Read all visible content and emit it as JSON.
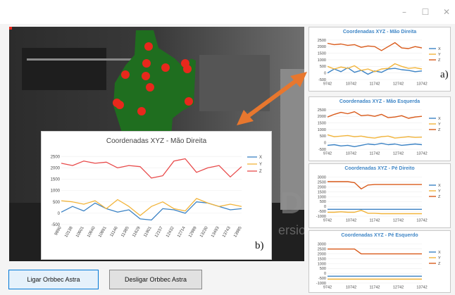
{
  "window": {
    "minimize_glyph": "–",
    "maximize_glyph": "☐",
    "close_glyph": "✕"
  },
  "buttons": {
    "connect_label": "Ligar Orbbec Astra",
    "disconnect_label": "Desligar Orbbec Astra"
  },
  "depth_view": {
    "overlay_text_partial_1": "DV",
    "overlay_text_partial_2": "ersio"
  },
  "colors": {
    "x": "#3b82c4",
    "y": "#f2b43a",
    "z_inset": "#e84b4b",
    "z_panel": "#d95a1a",
    "title": "#3f86c6",
    "arrow": "#e8772e",
    "joint": "#e8281c",
    "body": "#1f6e1f"
  },
  "annotations": {
    "a": "a)",
    "b": "b)"
  },
  "chart_data": [
    {
      "type": "line",
      "title": "Coordenadas XYZ - Mão Direita",
      "legend_position": "right",
      "y_ticks": [
        2500,
        2000,
        1500,
        1000,
        500,
        0,
        -500
      ],
      "ylim": [
        -500,
        2600
      ],
      "x_ticks": [
        "9742",
        "10742",
        "11742",
        "12742",
        "13742"
      ],
      "series": [
        {
          "name": "X",
          "values": [
            0,
            300,
            100,
            400,
            50,
            200,
            -100,
            150,
            50,
            300,
            350,
            250,
            200,
            100,
            150
          ]
        },
        {
          "name": "Y",
          "values": [
            500,
            300,
            450,
            350,
            550,
            200,
            300,
            100,
            300,
            350,
            700,
            500,
            350,
            400,
            300
          ]
        },
        {
          "name": "Z",
          "values": [
            2250,
            2150,
            2200,
            2100,
            2150,
            1950,
            2050,
            2000,
            1700,
            2000,
            2300,
            1900,
            1850,
            2000,
            1900
          ]
        }
      ]
    },
    {
      "type": "line",
      "title": "Coordenadas XYZ - Mão Esquerda",
      "legend_position": "right",
      "y_ticks": [
        2500,
        2000,
        1500,
        1000,
        500,
        0,
        -500
      ],
      "ylim": [
        -500,
        2600
      ],
      "x_ticks": [
        "9742",
        "10742",
        "11742",
        "12742",
        "13742"
      ],
      "series": [
        {
          "name": "X",
          "values": [
            -200,
            -150,
            -250,
            -200,
            -300,
            -200,
            -100,
            -150,
            -50,
            -150,
            -100,
            -200,
            -150,
            -100,
            -150
          ]
        },
        {
          "name": "Y",
          "values": [
            600,
            450,
            500,
            550,
            450,
            500,
            400,
            350,
            450,
            500,
            350,
            400,
            450,
            400,
            420
          ]
        },
        {
          "name": "Z",
          "values": [
            1950,
            2150,
            2300,
            2200,
            2350,
            2050,
            2100,
            2000,
            2150,
            1900,
            1950,
            2050,
            1850,
            1950,
            2000
          ]
        }
      ]
    },
    {
      "type": "line",
      "title": "Coordenadas XYZ - Pé Direito",
      "legend_position": "right",
      "y_ticks": [
        3000,
        2500,
        2000,
        1500,
        1000,
        500,
        0,
        -500,
        -1000
      ],
      "ylim": [
        -1000,
        3200
      ],
      "x_ticks": [
        "9742",
        "10742",
        "11742",
        "12742",
        "13742"
      ],
      "series": [
        {
          "name": "X",
          "values": [
            -300,
            -300,
            -300,
            -300,
            -300,
            -300,
            -300,
            -300,
            -300,
            -300,
            -300,
            -300,
            -300,
            -300,
            -300
          ]
        },
        {
          "name": "Y",
          "values": [
            -600,
            -600,
            -550,
            -600,
            -600,
            -400,
            -700,
            -700,
            -750,
            -750,
            -750,
            -750,
            -750,
            -750,
            -750
          ]
        },
        {
          "name": "Z",
          "values": [
            2550,
            2550,
            2550,
            2550,
            2450,
            1800,
            2200,
            2250,
            2250,
            2250,
            2250,
            2250,
            2250,
            2250,
            2250
          ]
        }
      ]
    },
    {
      "type": "line",
      "title": "Coordenadas XYZ - Pé Esquerdo",
      "legend_position": "right",
      "y_ticks": [
        3000,
        2500,
        2000,
        1500,
        1000,
        500,
        0,
        -500,
        -1000
      ],
      "ylim": [
        -1000,
        3200
      ],
      "x_ticks": [
        "9742",
        "10742",
        "11742",
        "12742",
        "13742"
      ],
      "series": [
        {
          "name": "X",
          "values": [
            -300,
            -300,
            -300,
            -300,
            -300,
            -300,
            -300,
            -300,
            -300,
            -300,
            -300,
            -300,
            -300,
            -300,
            -300
          ]
        },
        {
          "name": "Y",
          "values": [
            -600,
            -600,
            -600,
            -600,
            -600,
            -600,
            -600,
            -600,
            -600,
            -600,
            -600,
            -600,
            -600,
            -600,
            -600
          ]
        },
        {
          "name": "Z",
          "values": [
            2500,
            2500,
            2500,
            2500,
            2500,
            2000,
            2000,
            2000,
            2000,
            2000,
            2000,
            2000,
            2000,
            2000,
            2000
          ]
        }
      ]
    },
    {
      "type": "line",
      "title": "Coordenadas XYZ - Mão Direita",
      "legend_position": "right",
      "y_ticks": [
        2500,
        2000,
        1500,
        1000,
        500,
        0,
        -500
      ],
      "ylim": [
        -500,
        2600
      ],
      "x_ticks": [
        "9890",
        "10138",
        "10601",
        "10640",
        "10891",
        "11146",
        "11385",
        "11629",
        "11901",
        "12157",
        "12432",
        "12714",
        "12989",
        "13230",
        "13493",
        "13743",
        "13985"
      ],
      "series": [
        {
          "name": "X",
          "values": [
            50,
            300,
            100,
            450,
            200,
            50,
            150,
            -250,
            -300,
            200,
            150,
            0,
            500,
            450,
            300,
            150,
            200
          ]
        },
        {
          "name": "Y",
          "values": [
            550,
            500,
            400,
            550,
            200,
            600,
            300,
            -100,
            300,
            500,
            200,
            100,
            650,
            450,
            300,
            400,
            300
          ]
        },
        {
          "name": "Z",
          "values": [
            2200,
            2100,
            2300,
            2200,
            2250,
            2000,
            2100,
            2050,
            1550,
            1650,
            2300,
            2400,
            1800,
            2000,
            2100,
            1600,
            2050
          ]
        }
      ]
    }
  ]
}
